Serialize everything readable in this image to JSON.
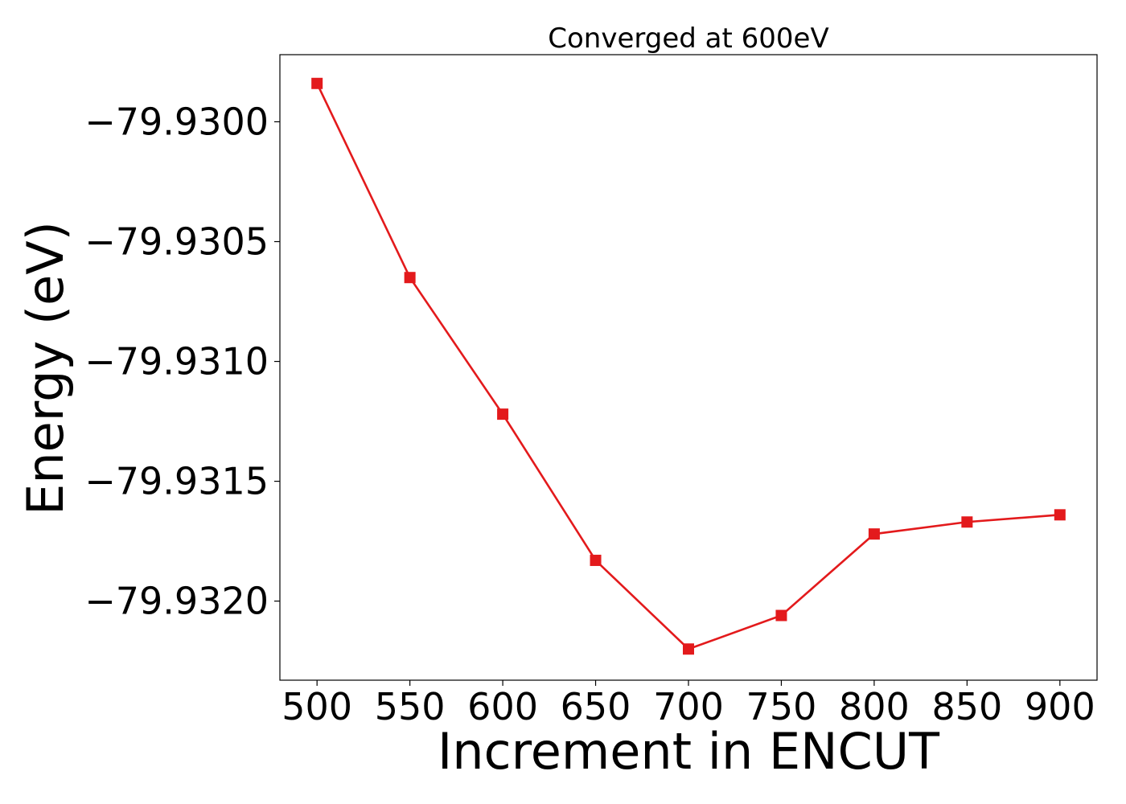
{
  "chart_data": {
    "type": "line",
    "title": "Converged at 600eV",
    "xlabel": "Increment in ENCUT",
    "ylabel": "Energy (eV)",
    "x": [
      500,
      550,
      600,
      650,
      700,
      750,
      800,
      850,
      900
    ],
    "series": [
      {
        "values": [
          -79.92984,
          -79.93065,
          -79.93122,
          -79.93183,
          -79.9322,
          -79.93206,
          -79.93172,
          -79.93167,
          -79.93164
        ],
        "color": "#e31a1c",
        "marker": "square"
      }
    ],
    "xticks": [
      500,
      550,
      600,
      650,
      700,
      750,
      800,
      850,
      900
    ],
    "xtick_labels": [
      "500",
      "550",
      "600",
      "650",
      "700",
      "750",
      "800",
      "850",
      "900"
    ],
    "yticks": [
      -79.93,
      -79.9305,
      -79.931,
      -79.9315,
      -79.932
    ],
    "ytick_labels": [
      "−79.9300",
      "−79.9305",
      "−79.9310",
      "−79.9315",
      "−79.9320"
    ],
    "xlim": [
      480,
      920
    ],
    "ylim": [
      -79.93233,
      -79.92972
    ],
    "grid": false,
    "legend": false
  }
}
